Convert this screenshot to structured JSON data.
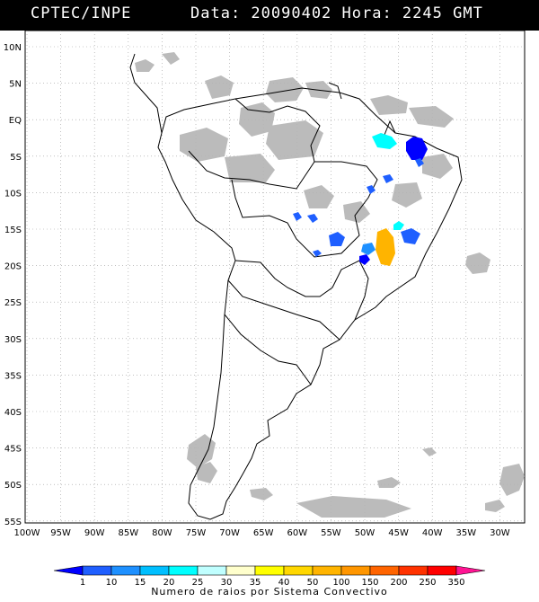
{
  "header": {
    "source": "CPTEC/INPE",
    "datetime": "Data: 20090402 Hora: 2245 GMT"
  },
  "map": {
    "lat_labels": [
      "10N",
      "5N",
      "EQ",
      "5S",
      "10S",
      "15S",
      "20S",
      "25S",
      "30S",
      "35S",
      "40S",
      "45S",
      "50S",
      "55S"
    ],
    "lon_labels": [
      "100W",
      "95W",
      "90W",
      "85W",
      "80W",
      "75W",
      "70W",
      "65W",
      "60W",
      "55W",
      "50W",
      "45W",
      "40W",
      "35W",
      "30W"
    ]
  },
  "legend": {
    "ticks": [
      "1",
      "10",
      "15",
      "20",
      "25",
      "30",
      "35",
      "40",
      "50",
      "100",
      "150",
      "200",
      "250",
      "350"
    ],
    "colors": [
      "#0000ff",
      "#1f5fff",
      "#1e90ff",
      "#00bfff",
      "#00ffff",
      "#c0ffff",
      "#ffffcc",
      "#ffff00",
      "#ffd700",
      "#ffb400",
      "#ff9600",
      "#ff6400",
      "#ff3200",
      "#ff0000",
      "#ff1493"
    ],
    "caption": "Numero de raios por Sistema Convectivo"
  },
  "colors": {
    "cloud": "#b4b4b4",
    "coast": "#000000",
    "grid": "#999999"
  }
}
